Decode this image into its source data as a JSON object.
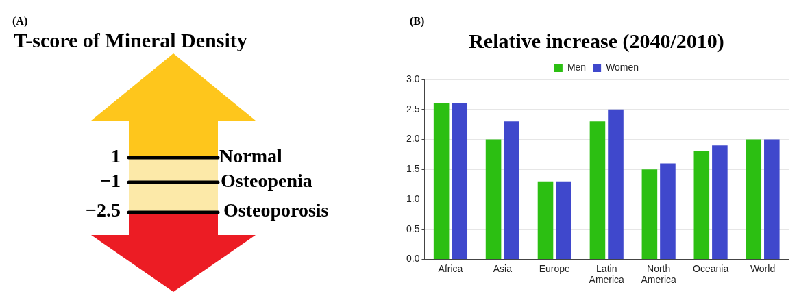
{
  "chart_data": [
    {
      "type": "other",
      "title": "T-score of Mineral Density",
      "annotations": [
        "(A)",
        "1",
        "Normal",
        "−1",
        "Osteopenia",
        "−2.5",
        "Osteoporosis"
      ]
    },
    {
      "type": "bar",
      "title": "Relative increase (2040/2010)",
      "annotations": [
        "(B)"
      ],
      "categories": [
        "Africa",
        "Asia",
        "Europe",
        "Latin America",
        "North America",
        "Oceania",
        "World"
      ],
      "series": [
        {
          "name": "Men",
          "color": "#2cbf12",
          "values": [
            2.6,
            2.0,
            1.3,
            2.3,
            1.5,
            1.8,
            2.0
          ]
        },
        {
          "name": "Women",
          "color": "#3f48cc",
          "values": [
            2.6,
            2.3,
            1.3,
            2.5,
            1.6,
            1.9,
            2.0
          ]
        }
      ],
      "ylim": [
        0,
        3
      ],
      "yticks": [
        {
          "value": 0,
          "label": "0.0"
        },
        {
          "value": 0.5,
          "label": "0.5"
        },
        {
          "value": 1,
          "label": "1.0"
        },
        {
          "value": 1.5,
          "label": "1.5"
        },
        {
          "value": 2,
          "label": "2.0"
        },
        {
          "value": 2.5,
          "label": "2.5"
        },
        {
          "value": 3,
          "label": "3.0"
        }
      ],
      "grid": "y",
      "legend": "top"
    }
  ]
}
